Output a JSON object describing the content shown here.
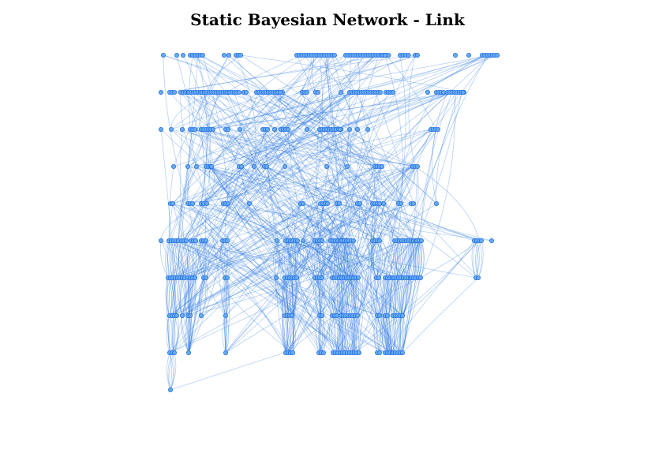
{
  "title": "Static Bayesian Network - Link",
  "colors": {
    "background": "#ffffff",
    "title_text": "#000000",
    "edge": "#1f6fe0",
    "node_fill": "#6aaaf0",
    "node_stroke": "#1f6fe0"
  },
  "graph": {
    "layout": "layered",
    "layers": 10,
    "nodes_per_layer": [
      52,
      62,
      30,
      26,
      28,
      52,
      44,
      19,
      19,
      1
    ],
    "edge_style": "curved"
  }
}
